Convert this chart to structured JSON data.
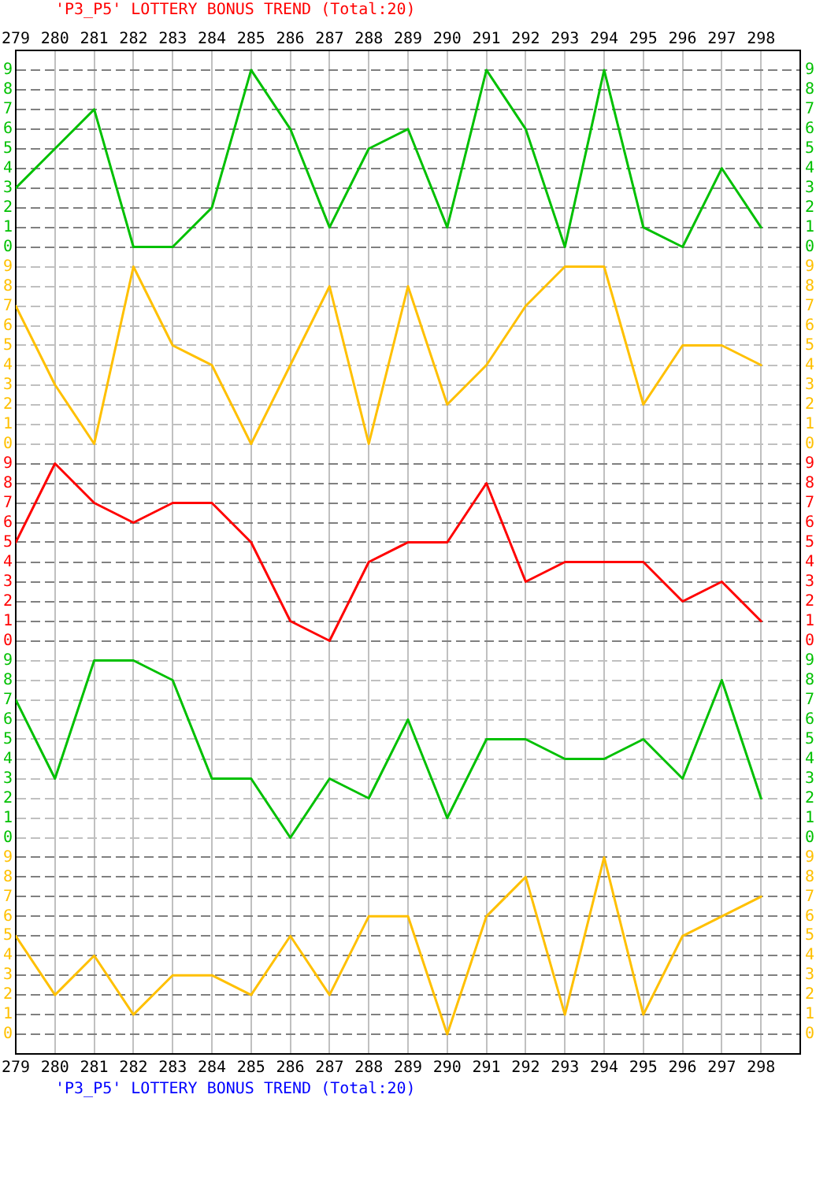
{
  "chart_data": [
    {
      "type": "line",
      "title": "'P3_P5' LOTTERY BONUS TREND (Total:20)",
      "x": [
        279,
        280,
        281,
        282,
        283,
        284,
        285,
        286,
        287,
        288,
        289,
        290,
        291,
        292,
        293,
        294,
        295,
        296,
        297,
        298
      ],
      "xlim": [
        279,
        299
      ],
      "xticks": [
        279,
        280,
        281,
        282,
        283,
        284,
        285,
        286,
        287,
        288,
        289,
        290,
        291,
        292,
        293,
        294,
        295,
        296,
        297,
        298
      ],
      "ylim": [
        -0.5,
        10
      ],
      "yticks": [
        0,
        1,
        2,
        3,
        4,
        5,
        6,
        7,
        8,
        9
      ],
      "y2lim": [
        -0.5,
        10
      ],
      "y2ticks": [
        0,
        1,
        2,
        3,
        4,
        5,
        6,
        7,
        8,
        9
      ],
      "grid": true,
      "series": [
        {
          "color": "#00c000",
          "values": [
            3,
            5,
            7,
            0,
            0,
            2,
            9,
            6,
            1,
            5,
            6,
            1,
            9,
            6,
            0,
            9,
            1,
            0,
            4,
            1
          ]
        }
      ]
    },
    {
      "type": "line",
      "x": [
        279,
        280,
        281,
        282,
        283,
        284,
        285,
        286,
        287,
        288,
        289,
        290,
        291,
        292,
        293,
        294,
        295,
        296,
        297,
        298
      ],
      "xlim": [
        279,
        299
      ],
      "xticks": [
        279,
        280,
        281,
        282,
        283,
        284,
        285,
        286,
        287,
        288,
        289,
        290,
        291,
        292,
        293,
        294,
        295,
        296,
        297,
        298
      ],
      "ylim": [
        -0.5,
        9.5
      ],
      "yticks": [
        0,
        1,
        2,
        3,
        4,
        5,
        6,
        7,
        8,
        9
      ],
      "y2lim": [
        -0.5,
        9.5
      ],
      "y2ticks": [
        0,
        1,
        2,
        3,
        4,
        5,
        6,
        7,
        8,
        9
      ],
      "tick_labels": "y",
      "grid": true,
      "series": [
        {
          "color": "#ffc000",
          "values": [
            7,
            3,
            0,
            9,
            5,
            4,
            0,
            4,
            8,
            0,
            8,
            2,
            4,
            7,
            9,
            9,
            2,
            5,
            5,
            4
          ]
        }
      ]
    },
    {
      "type": "line",
      "x": [
        279,
        280,
        281,
        282,
        283,
        284,
        285,
        286,
        287,
        288,
        289,
        290,
        291,
        292,
        293,
        294,
        295,
        296,
        297,
        298
      ],
      "xlim": [
        279,
        299
      ],
      "xticks": [
        279,
        280,
        281,
        282,
        283,
        284,
        285,
        286,
        287,
        288,
        289,
        290,
        291,
        292,
        293,
        294,
        295,
        296,
        297,
        298
      ],
      "ylim": [
        -0.5,
        9.5
      ],
      "yticks": [
        0,
        1,
        2,
        3,
        4,
        5,
        6,
        7,
        8,
        9
      ],
      "y2lim": [
        -0.5,
        9.5
      ],
      "y2ticks": [
        0,
        1,
        2,
        3,
        4,
        5,
        6,
        7,
        8,
        9
      ],
      "tick_labels": "y",
      "grid": true,
      "series": [
        {
          "color": "#ff0000",
          "values": [
            5,
            9,
            7,
            6,
            7,
            7,
            5,
            1,
            0,
            4,
            5,
            5,
            8,
            3,
            4,
            4,
            4,
            2,
            3,
            1
          ]
        }
      ]
    },
    {
      "type": "line",
      "x": [
        279,
        280,
        281,
        282,
        283,
        284,
        285,
        286,
        287,
        288,
        289,
        290,
        291,
        292,
        293,
        294,
        295,
        296,
        297,
        298
      ],
      "xlim": [
        279,
        299
      ],
      "xticks": [
        279,
        280,
        281,
        282,
        283,
        284,
        285,
        286,
        287,
        288,
        289,
        290,
        291,
        292,
        293,
        294,
        295,
        296,
        297,
        298
      ],
      "ylim": [
        -0.5,
        9.5
      ],
      "yticks": [
        0,
        1,
        2,
        3,
        4,
        5,
        6,
        7,
        8,
        9
      ],
      "y2lim": [
        -0.5,
        9.5
      ],
      "y2ticks": [
        0,
        1,
        2,
        3,
        4,
        5,
        6,
        7,
        8,
        9
      ],
      "tick_labels": "y",
      "grid": true,
      "series": [
        {
          "color": "#00c000",
          "values": [
            7,
            3,
            9,
            9,
            8,
            3,
            3,
            0,
            3,
            2,
            6,
            1,
            5,
            5,
            4,
            4,
            5,
            3,
            8,
            2
          ]
        }
      ]
    },
    {
      "type": "line",
      "annotations": [
        "'P3_P5' LOTTERY BONUS TREND (Total:20)"
      ],
      "x": [
        279,
        280,
        281,
        282,
        283,
        284,
        285,
        286,
        287,
        288,
        289,
        290,
        291,
        292,
        293,
        294,
        295,
        296,
        297,
        298
      ],
      "xlim": [
        279,
        299
      ],
      "xticks": [
        279,
        280,
        281,
        282,
        283,
        284,
        285,
        286,
        287,
        288,
        289,
        290,
        291,
        292,
        293,
        294,
        295,
        296,
        297,
        298
      ],
      "ylim": [
        -1,
        9.5
      ],
      "yticks": [
        0,
        1,
        2,
        3,
        4,
        5,
        6,
        7,
        8,
        9
      ],
      "y2lim": [
        -1,
        9.5
      ],
      "y2ticks": [
        0,
        1,
        2,
        3,
        4,
        5,
        6,
        7,
        8,
        9
      ],
      "grid": true,
      "series": [
        {
          "color": "#ffc000",
          "values": [
            5,
            2,
            4,
            1,
            3,
            3,
            2,
            5,
            2,
            6,
            6,
            0,
            6,
            8,
            1,
            9,
            1,
            5,
            6,
            7
          ]
        }
      ]
    }
  ]
}
